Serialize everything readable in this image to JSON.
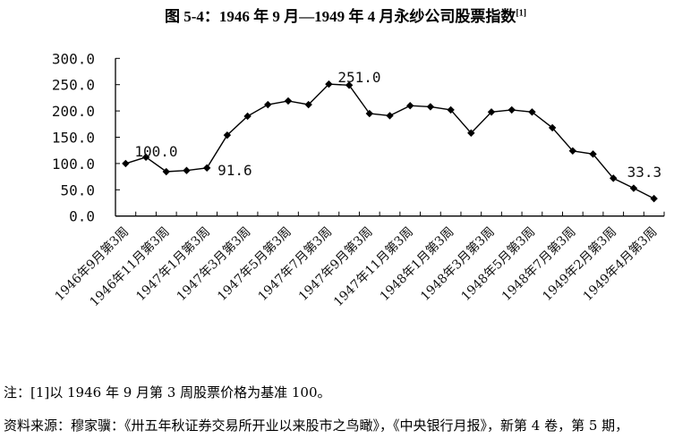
{
  "title": {
    "text": "图 5-4：1946 年 9 月—1949 年 4 月永纱公司股票指数",
    "superscript": "[1]"
  },
  "notes": {
    "footnote": "注：[1]以 1946 年 9 月第 3 周股票价格为基准 100。",
    "source": "资料来源：穆家骥：《卅五年秋证券交易所开业以来股市之鸟瞰》，《中央银行月报》，新第 4 卷，第 5 期，"
  },
  "chart_data": {
    "type": "line",
    "title": "图 5-4：1946 年 9 月—1949 年 4 月永纱公司股票指数[1]",
    "xlabel": "",
    "ylabel": "",
    "ylim": [
      0,
      300
    ],
    "yticks": [
      "0.0",
      "50.0",
      "100.0",
      "150.0",
      "200.0",
      "250.0",
      "300.0"
    ],
    "grid": false,
    "legend": null,
    "marker": "diamond",
    "line_color": "#000000",
    "x": [
      "1946年9月第3周",
      "",
      "1946年11月第3周",
      "",
      "1947年1月第3周",
      "",
      "1947年3月第3周",
      "",
      "1947年5月第3周",
      "",
      "1947年7月第3周",
      "",
      "1947年9月第3周",
      "",
      "1947年11月第3周",
      "",
      "1948年1月第3周",
      "",
      "1948年3月第3周",
      "",
      "1948年5月第3周",
      "",
      "1948年7月第3周",
      "",
      "1949年2月第3周",
      "",
      "1949年4月第3周"
    ],
    "tick_labels": [
      "1946年9月第3周",
      "1946年11月第3周",
      "1947年1月第3周",
      "1947年3月第3周",
      "1947年5月第3周",
      "1947年7月第3周",
      "1947年9月第3周",
      "1947年11月第3周",
      "1948年1月第3周",
      "1948年3月第3周",
      "1948年5月第3周",
      "1948年7月第3周",
      "1949年2月第3周",
      "1949年4月第3周"
    ],
    "values": [
      100.0,
      112,
      84.5,
      86.7,
      91.6,
      154,
      190,
      212,
      219,
      212,
      251.0,
      249,
      195,
      191,
      210,
      208,
      202,
      158,
      198,
      202,
      198,
      168,
      124,
      118,
      72,
      53,
      33.3
    ],
    "annotations": [
      {
        "index": 0,
        "text": "100.0"
      },
      {
        "index": 4,
        "text": "91.6"
      },
      {
        "index": 10,
        "text": "251.0"
      },
      {
        "index": 26,
        "text": "33.3"
      }
    ]
  }
}
